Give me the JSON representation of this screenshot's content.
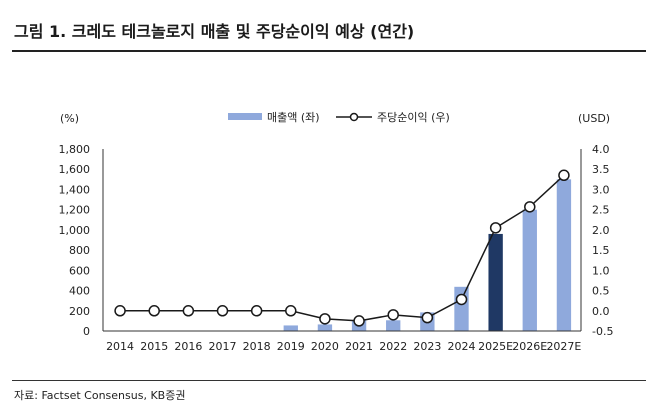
{
  "header": {
    "title": "그림 1. 크레도 테크놀로지 매출 및 주당순이익 예상 (연간)"
  },
  "footer": {
    "source": "자료: Factset Consensus, KB증권"
  },
  "colors": {
    "bar": "#8fa9dc",
    "bar_highlight": "#1f3864",
    "line": "#1a1a1a",
    "marker_fill": "#ffffff"
  },
  "chart_data": {
    "type": "bar",
    "categories": [
      "2014",
      "2015",
      "2016",
      "2017",
      "2018",
      "2019",
      "2020",
      "2021",
      "2022",
      "2023",
      "2024",
      "2025E",
      "2026E",
      "2027E"
    ],
    "series": [
      {
        "name": "매출액 (좌)",
        "type": "bar",
        "axis": "left",
        "values": [
          0,
          0,
          0,
          0,
          0,
          55,
          65,
          105,
          106,
          184,
          437,
          960,
          1200,
          1500
        ],
        "highlight_index": 11
      },
      {
        "name": "주당순이익 (우)",
        "type": "line",
        "axis": "right",
        "values": [
          0.0,
          0.0,
          0.0,
          0.0,
          0.0,
          0.0,
          -0.2,
          -0.25,
          -0.1,
          -0.17,
          0.28,
          2.05,
          2.57,
          3.35
        ]
      }
    ],
    "y_left": {
      "label": "(%)",
      "ylim": [
        0,
        1800
      ],
      "ticks": [
        "0",
        "200",
        "400",
        "600",
        "800",
        "1,000",
        "1,200",
        "1,400",
        "1,600",
        "1,800"
      ]
    },
    "y_right": {
      "label": "(USD)",
      "ylim": [
        -0.5,
        4.0
      ],
      "ticks": [
        "-0.5",
        "0.0",
        "0.5",
        "1.0",
        "1.5",
        "2.0",
        "2.5",
        "3.0",
        "3.5",
        "4.0"
      ]
    },
    "grid": false,
    "legend_position": "top-center"
  }
}
